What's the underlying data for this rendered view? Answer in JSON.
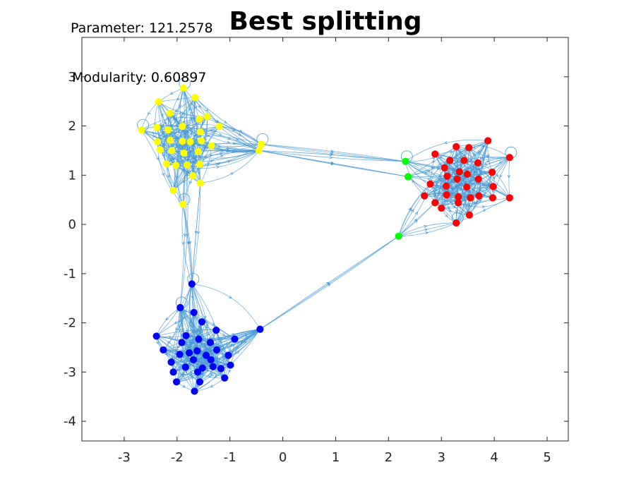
{
  "chart_data": {
    "type": "scatter",
    "title": "Best splitting",
    "annotations": {
      "parameter": "Parameter: 121.2578",
      "modularity": "Modularity: 0.60897"
    },
    "xlim": [
      -3.8,
      5.4
    ],
    "ylim": [
      -4.4,
      3.8
    ],
    "xticks": [
      -3,
      -2,
      -1,
      0,
      1,
      2,
      3,
      4,
      5
    ],
    "yticks": [
      -4,
      -3,
      -2,
      -1,
      0,
      1,
      2,
      3
    ],
    "edge_color": "#4a9bd4",
    "grid": false,
    "legend": "none",
    "series": [
      {
        "color": "#ffff00",
        "points": [
          [
            -1.88,
            2.77
          ],
          [
            -1.66,
            2.58
          ],
          [
            -2.35,
            2.49
          ],
          [
            -2.13,
            2.26
          ],
          [
            -2.67,
            1.92
          ],
          [
            -2.38,
            1.97
          ],
          [
            -1.43,
            2.19
          ],
          [
            -1.58,
            2.14
          ],
          [
            -1.2,
            1.99
          ],
          [
            -2.17,
            1.92
          ],
          [
            -1.9,
            1.99
          ],
          [
            -1.56,
            1.88
          ],
          [
            -2.37,
            1.68
          ],
          [
            -2.13,
            1.71
          ],
          [
            -1.9,
            1.69
          ],
          [
            -1.75,
            1.68
          ],
          [
            -1.54,
            1.7
          ],
          [
            -1.35,
            1.6
          ],
          [
            -2.32,
            1.52
          ],
          [
            -2.1,
            1.5
          ],
          [
            -1.87,
            1.45
          ],
          [
            -1.6,
            1.48
          ],
          [
            -2.2,
            1.23
          ],
          [
            -2.02,
            1.2
          ],
          [
            -1.81,
            1.21
          ],
          [
            -1.57,
            1.22
          ],
          [
            -1.7,
            0.99
          ],
          [
            -1.56,
            0.84
          ],
          [
            -2.07,
            0.69
          ],
          [
            -1.89,
            0.41
          ],
          [
            -0.45,
            1.5
          ],
          [
            -0.41,
            1.63
          ]
        ]
      },
      {
        "color": "#00ff00",
        "points": [
          [
            2.32,
            1.28
          ],
          [
            2.37,
            0.97
          ],
          [
            2.19,
            -0.24
          ]
        ]
      },
      {
        "color": "#ff0000",
        "points": [
          [
            3.88,
            1.7
          ],
          [
            2.88,
            1.43
          ],
          [
            3.28,
            1.58
          ],
          [
            3.52,
            1.56
          ],
          [
            4.29,
            1.36
          ],
          [
            3.16,
            1.3
          ],
          [
            3.43,
            1.3
          ],
          [
            3.69,
            1.25
          ],
          [
            3.06,
            1.15
          ],
          [
            3.34,
            1.07
          ],
          [
            3.49,
            1.02
          ],
          [
            3.96,
            1.06
          ],
          [
            3.11,
            0.98
          ],
          [
            3.3,
            0.92
          ],
          [
            3.7,
            0.92
          ],
          [
            2.79,
            0.82
          ],
          [
            3.09,
            0.78
          ],
          [
            3.48,
            0.76
          ],
          [
            3.98,
            0.77
          ],
          [
            2.68,
            0.58
          ],
          [
            3.1,
            0.6
          ],
          [
            3.32,
            0.56
          ],
          [
            3.71,
            0.58
          ],
          [
            2.88,
            0.44
          ],
          [
            3.32,
            0.44
          ],
          [
            3.55,
            0.54
          ],
          [
            3.97,
            0.54
          ],
          [
            4.29,
            0.54
          ],
          [
            3.0,
            0.33
          ],
          [
            3.53,
            0.19
          ],
          [
            3.28,
            0.03
          ]
        ]
      },
      {
        "color": "#0000ff",
        "points": [
          [
            -1.72,
            -1.21
          ],
          [
            -1.94,
            -1.69
          ],
          [
            -1.68,
            -1.79
          ],
          [
            -1.53,
            -1.98
          ],
          [
            -1.26,
            -2.15
          ],
          [
            -2.39,
            -2.27
          ],
          [
            -1.83,
            -2.26
          ],
          [
            -1.59,
            -2.33
          ],
          [
            -1.91,
            -2.4
          ],
          [
            -1.37,
            -2.4
          ],
          [
            -0.91,
            -2.33
          ],
          [
            -0.43,
            -2.13
          ],
          [
            -2.26,
            -2.55
          ],
          [
            -1.77,
            -2.61
          ],
          [
            -1.62,
            -2.57
          ],
          [
            -1.45,
            -2.66
          ],
          [
            -1.25,
            -2.55
          ],
          [
            -1.03,
            -2.66
          ],
          [
            -1.69,
            -2.75
          ],
          [
            -1.36,
            -2.75
          ],
          [
            -1.95,
            -2.64
          ],
          [
            -2.11,
            -2.8
          ],
          [
            -1.84,
            -2.9
          ],
          [
            -1.52,
            -2.92
          ],
          [
            -1.32,
            -2.89
          ],
          [
            -1.17,
            -2.93
          ],
          [
            -0.99,
            -2.86
          ],
          [
            -2.07,
            -3.0
          ],
          [
            -1.61,
            -3.0
          ],
          [
            -1.1,
            -3.12
          ],
          [
            -2.01,
            -3.2
          ],
          [
            -1.57,
            -3.2
          ],
          [
            -1.67,
            -3.39
          ]
        ]
      }
    ]
  }
}
